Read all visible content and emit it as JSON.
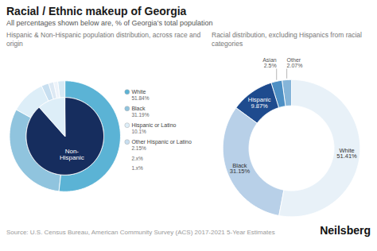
{
  "title": "Racial / Ethnic makeup of Georgia",
  "subtitle": "All percentages shown below are, % of Georgia’s total population",
  "source": "Source: U.S. Census Bureau, American Community Survey (ACS) 2017-2021 5-Year Estimates",
  "brand": "Neilsberg",
  "chart_data": [
    {
      "type": "pie",
      "title": "Hispanic & Non-Hispanic population distribution, across race and origin",
      "rings": [
        {
          "categories": [
            "White",
            "Black",
            "Hispanic or Latino",
            "Other Hispanic or Latino",
            null,
            null,
            null
          ],
          "values": [
            51.84,
            31.19,
            10.1,
            2.15,
            1.5,
            1.2,
            2.02
          ],
          "colors": [
            "#5bb3d5",
            "#90c4de",
            "#ddeef8",
            "#c8dff0",
            "#dde9f4",
            "#edf3fa",
            "#d8eaf5"
          ],
          "value_labels": [
            "51.84%",
            "31.19%",
            "10.1%",
            "2.15%",
            null,
            null,
            null
          ]
        },
        {
          "categories": [
            "Non-\nHispanic",
            null
          ],
          "values": [
            88.5,
            11.5
          ],
          "colors": [
            "#162d5e",
            "#ddeef8"
          ]
        }
      ],
      "annotations": [
        "2.x%",
        "1.x%"
      ],
      "data_labels": true
    },
    {
      "type": "donut",
      "title": "Racial distribution, excluding Hispanics from racial categories",
      "categories": [
        "White",
        "Black",
        "Hispanic",
        "Asian",
        "Other"
      ],
      "values": [
        51.41,
        31.15,
        9.87,
        2.5,
        2.07
      ],
      "colors": [
        "#e8f1f8",
        "#b8d0e8",
        "#1e4b8e",
        "#4d8fc4",
        "#85b5d9"
      ],
      "value_labels": [
        "51.41%",
        "31.15%",
        "9.87%",
        "2.5%",
        "2.07%"
      ],
      "data_labels": true
    }
  ]
}
